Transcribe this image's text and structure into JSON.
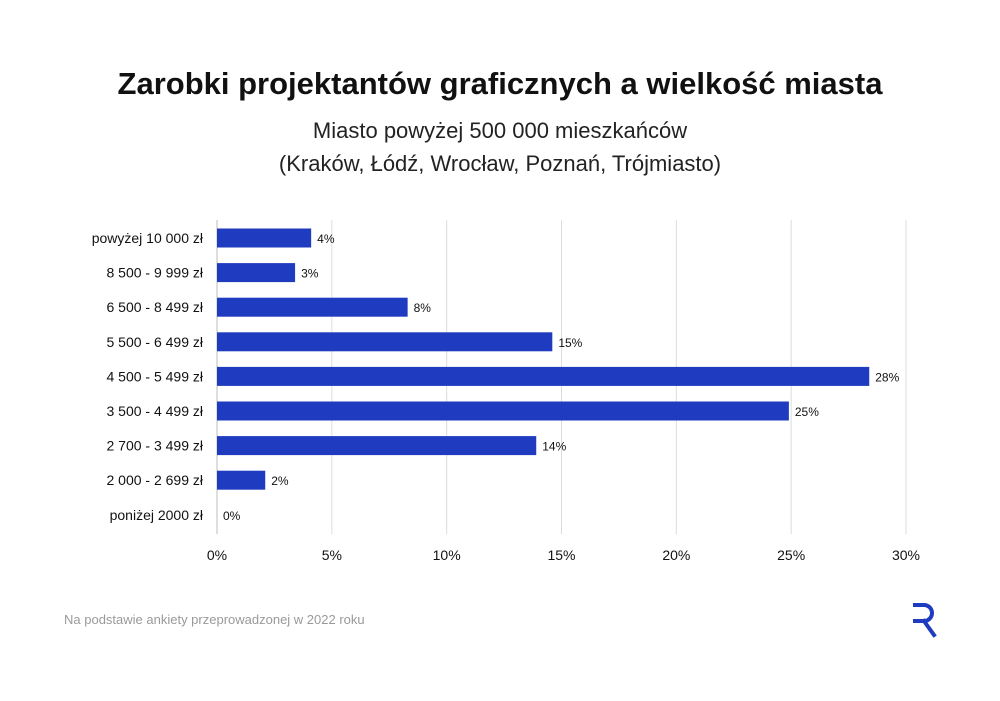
{
  "title": "Zarobki projektantów graficznych a wielkość miasta",
  "subtitle_line1": "Miasto powyżej 500 000 mieszkańców",
  "subtitle_line2": "(Kraków, Łódź, Wrocław, Poznań, Trójmiasto)",
  "footnote": "Na podstawie ankiety przeprowadzonej w 2022 roku",
  "logo_icon": "r-logo-icon",
  "colors": {
    "bar": "#1f3bbf",
    "grid": "#dcdcdc",
    "logo": "#1f3bbf"
  },
  "chart_data": {
    "type": "bar",
    "orientation": "horizontal",
    "categories": [
      "powyżej 10 000 zł",
      "8 500 - 9 999 zł",
      "6 500 - 8 499 zł",
      "5 500 - 6 499 zł",
      "4 500 - 5 499 zł",
      "3 500 - 4 499 zł",
      "2 700 - 3 499 zł",
      "2 000 - 2 699 zł",
      "poniżej 2000 zł"
    ],
    "values": [
      4.1,
      3.4,
      8.3,
      14.6,
      28.4,
      24.9,
      13.9,
      2.1,
      0
    ],
    "data_labels": [
      "4%",
      "3%",
      "8%",
      "15%",
      "28%",
      "25%",
      "14%",
      "2%",
      "0%"
    ],
    "xlim": [
      0,
      30
    ],
    "xticks": [
      0,
      5,
      10,
      15,
      20,
      25,
      30
    ],
    "xtick_labels": [
      "0%",
      "5%",
      "10%",
      "15%",
      "20%",
      "25%",
      "30%"
    ],
    "grid": "vertical"
  }
}
